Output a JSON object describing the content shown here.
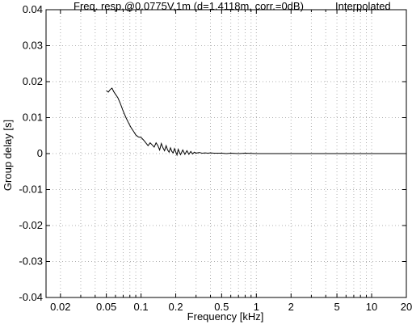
{
  "chart_data": {
    "type": "line",
    "title": "Freq. resp.@0.0775V,1m (d=1.4118m, corr.=0dB)",
    "title_right": "Interpolated",
    "xlabel": "Frequency [kHz]",
    "ylabel": "Group delay [s]",
    "x_scale": "log",
    "xlim": [
      0.015,
      20
    ],
    "ylim": [
      -0.04,
      0.04
    ],
    "grid": true,
    "x_ticks": [
      0.02,
      0.05,
      0.1,
      0.2,
      0.5,
      1,
      2,
      5,
      10,
      20
    ],
    "x_tick_labels": [
      "0.02",
      "0.05",
      "0.1",
      "0.2",
      "0.5",
      "1",
      "2",
      "5",
      "10",
      "20"
    ],
    "y_ticks": [
      -0.04,
      -0.03,
      -0.02,
      -0.01,
      0,
      0.01,
      0.02,
      0.03,
      0.04
    ],
    "y_tick_labels": [
      "-0.04",
      "-0.03",
      "-0.02",
      "-0.01",
      "0",
      "0.01",
      "0.02",
      "0.03",
      "0.04"
    ],
    "series": [
      {
        "color": "#000000",
        "x": [
          0.05,
          0.052,
          0.054,
          0.056,
          0.058,
          0.06,
          0.063,
          0.066,
          0.07,
          0.074,
          0.078,
          0.082,
          0.086,
          0.09,
          0.095,
          0.1,
          0.105,
          0.11,
          0.115,
          0.12,
          0.125,
          0.13,
          0.135,
          0.14,
          0.145,
          0.15,
          0.155,
          0.16,
          0.165,
          0.17,
          0.175,
          0.18,
          0.185,
          0.19,
          0.195,
          0.2,
          0.205,
          0.21,
          0.215,
          0.22,
          0.23,
          0.24,
          0.25,
          0.26,
          0.27,
          0.28,
          0.29,
          0.3,
          0.32,
          0.34,
          0.36,
          0.38,
          0.4,
          0.43,
          0.46,
          0.5,
          0.55,
          0.6,
          0.7,
          0.8,
          1.0,
          1.3,
          1.6,
          2.0,
          3.0,
          5.0,
          10.0,
          20.0
        ],
        "y": [
          0.0175,
          0.0171,
          0.0178,
          0.0182,
          0.0172,
          0.0165,
          0.0155,
          0.014,
          0.0118,
          0.01,
          0.0085,
          0.0072,
          0.0062,
          0.0052,
          0.0046,
          0.0045,
          0.0038,
          0.003,
          0.0022,
          0.003,
          0.0024,
          0.0018,
          0.003,
          0.0022,
          0.001,
          0.0028,
          0.0016,
          0.0008,
          0.0022,
          0.001,
          0.0004,
          0.0016,
          0.0006,
          0.0002,
          0.0014,
          0.0005,
          -0.0004,
          0.0012,
          0.0004,
          -0.0003,
          0.001,
          -0.0002,
          0.0008,
          -0.0002,
          0.0006,
          -0.0001,
          0.0004,
          0.0001,
          0.0003,
          0.0001,
          0.0002,
          0.0001,
          0.0002,
          0.0001,
          0.0001,
          0.0001,
          0.0,
          0.0001,
          0.0,
          0.0001,
          0.0,
          0.0,
          0.0,
          0.0,
          0.0,
          0.0,
          0.0,
          0.0
        ]
      }
    ]
  }
}
